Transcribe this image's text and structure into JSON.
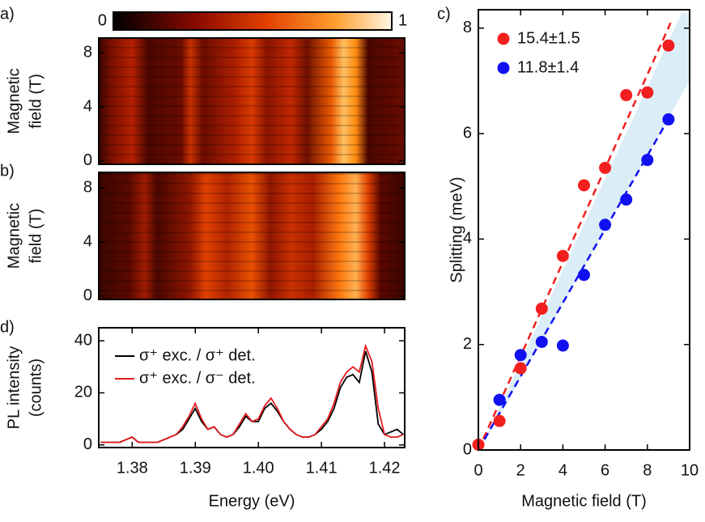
{
  "chart_data": [
    {
      "type": "colorbar",
      "lim": [
        0,
        1
      ],
      "ticks": [
        0,
        1
      ]
    },
    {
      "type": "heatmap",
      "panel": "a)",
      "ylabel": [
        "Magnetic",
        "field (T)"
      ],
      "ylim": [
        -0.25,
        9.1
      ],
      "yticks": [
        0,
        4,
        8
      ]
    },
    {
      "type": "heatmap",
      "panel": "b)",
      "ylabel": [
        "Magnetic",
        "field (T)"
      ],
      "ylim": [
        -0.25,
        9.15
      ],
      "yticks": [
        0,
        4,
        8
      ]
    },
    {
      "type": "line",
      "panel": "d)",
      "xlabel": "Energy (eV)",
      "ylabel": [
        "PL intensity",
        "(counts)"
      ],
      "xlim": [
        1.3747,
        1.4232
      ],
      "xticks": [
        1.38,
        1.39,
        {
          "value": 1.4,
          "label": "1.40"
        },
        1.41,
        1.42
      ],
      "ylim": [
        -1,
        45
      ],
      "yticks": [
        0,
        20,
        40
      ],
      "x": [
        1.375,
        1.376,
        1.377,
        1.378,
        1.379,
        1.38,
        1.381,
        1.382,
        1.383,
        1.384,
        1.385,
        1.386,
        1.387,
        1.388,
        1.389,
        1.39,
        1.391,
        1.392,
        1.393,
        1.394,
        1.395,
        1.396,
        1.397,
        1.398,
        1.399,
        1.4,
        1.401,
        1.402,
        1.403,
        1.404,
        1.405,
        1.406,
        1.407,
        1.408,
        1.409,
        1.41,
        1.411,
        1.412,
        1.413,
        1.414,
        1.415,
        1.416,
        1.417,
        1.418,
        1.419,
        1.42,
        1.421,
        1.422,
        1.423
      ],
      "series": [
        {
          "name": "σ⁺ exc. / σ⁺ det.",
          "color": "#000000",
          "values": [
            1,
            1,
            1,
            1,
            2,
            3,
            1,
            1,
            1,
            1,
            2,
            3,
            4,
            6,
            10,
            14,
            9,
            6,
            7,
            4,
            3,
            4,
            7,
            11,
            9,
            9,
            14,
            16,
            13,
            9,
            6,
            4,
            3,
            3,
            4,
            6,
            9,
            14,
            22,
            26,
            27,
            24,
            36,
            28,
            8,
            4,
            5,
            6,
            4
          ]
        },
        {
          "name": "σ⁺ exc. / σ⁻ det.",
          "color": "#e41a1c",
          "values": [
            1,
            1,
            1,
            1,
            2,
            3,
            1,
            1,
            1,
            1,
            2,
            3,
            4,
            7,
            11,
            16,
            10,
            6,
            7,
            4,
            3,
            4,
            8,
            12,
            9,
            10,
            15,
            18,
            14,
            9,
            6,
            4,
            3,
            3,
            4,
            7,
            10,
            16,
            24,
            28,
            30,
            28,
            38,
            32,
            14,
            4,
            3,
            3,
            4
          ]
        }
      ]
    },
    {
      "type": "scatter",
      "panel": "c)",
      "xlabel": "Magnetic field (T)",
      "ylabel": "Splitting (meV)",
      "xlim": [
        0,
        10
      ],
      "xticks": [
        0,
        2,
        4,
        6,
        8,
        10
      ],
      "ylim": [
        0,
        8.35
      ],
      "yticks": [
        0,
        2,
        4,
        6,
        8
      ],
      "series": [
        {
          "name": "15.4±1.5",
          "color": "#f21f1f",
          "x": [
            0,
            1,
            2,
            3,
            4,
            5,
            6,
            7,
            8,
            9
          ],
          "values": [
            0.1,
            0.55,
            1.55,
            2.68,
            3.68,
            5.02,
            5.35,
            6.73,
            6.78,
            7.67
          ],
          "fit": {
            "x": [
              0,
              9.1
            ],
            "y": [
              0,
              8.1
            ]
          }
        },
        {
          "name": "11.8±1.4",
          "color": "#1010f0",
          "x": [
            1,
            2,
            3,
            4,
            5,
            6,
            7,
            8,
            9
          ],
          "values": [
            0.95,
            1.8,
            2.05,
            1.98,
            3.32,
            4.27,
            4.75,
            5.5,
            6.27
          ],
          "fit": {
            "x": [
              0,
              9.1
            ],
            "y": [
              0,
              6.35
            ]
          }
        }
      ]
    }
  ]
}
